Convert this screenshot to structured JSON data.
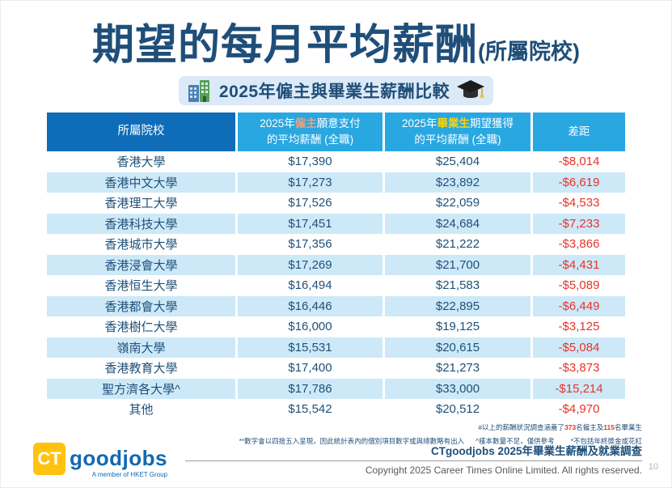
{
  "title": {
    "main": "期望的每月平均薪酬",
    "suffix": "(所屬院校)"
  },
  "subtitle": {
    "text": "2025年僱主與畢業生薪酬比較"
  },
  "table": {
    "header": {
      "institution": "所屬院校",
      "employer_prefix": "2025年",
      "employer_highlight": "僱主",
      "employer_rest": "願意支付",
      "employer_line2": "的平均薪酬 (全職)",
      "graduate_prefix": "2025年",
      "graduate_highlight": "畢業生",
      "graduate_rest": "期望獲得",
      "graduate_line2": "的平均薪酬 (全職)",
      "gap": "差距"
    },
    "rows": [
      {
        "institution": "香港大學",
        "employer": "$17,390",
        "graduate": "$25,404",
        "gap": "-$8,014"
      },
      {
        "institution": "香港中文大學",
        "employer": "$17,273",
        "graduate": "$23,892",
        "gap": "-$6,619"
      },
      {
        "institution": "香港理工大學",
        "employer": "$17,526",
        "graduate": "$22,059",
        "gap": "-$4,533"
      },
      {
        "institution": "香港科技大學",
        "employer": "$17,451",
        "graduate": "$24,684",
        "gap": "-$7,233"
      },
      {
        "institution": "香港城市大學",
        "employer": "$17,356",
        "graduate": "$21,222",
        "gap": "-$3,866"
      },
      {
        "institution": "香港浸會大學",
        "employer": "$17,269",
        "graduate": "$21,700",
        "gap": "-$4,431"
      },
      {
        "institution": "香港恒生大學",
        "employer": "$16,494",
        "graduate": "$21,583",
        "gap": "-$5,089"
      },
      {
        "institution": "香港都會大學",
        "employer": "$16,446",
        "graduate": "$22,895",
        "gap": "-$6,449"
      },
      {
        "institution": "香港樹仁大學",
        "employer": "$16,000",
        "graduate": "$19,125",
        "gap": "-$3,125"
      },
      {
        "institution": "嶺南大學",
        "employer": "$15,531",
        "graduate": "$20,615",
        "gap": "-$5,084"
      },
      {
        "institution": "香港教育大學",
        "employer": "$17,400",
        "graduate": "$21,273",
        "gap": "-$3,873"
      },
      {
        "institution": "聖方濟各大學^",
        "employer": "$17,786",
        "graduate": "$33,000",
        "gap": "-$15,214"
      },
      {
        "institution": "其他",
        "employer": "$15,542",
        "graduate": "$20,512",
        "gap": "-$4,970"
      }
    ]
  },
  "footnotes": {
    "line1_prefix": "#以上的薪酬狀況調查涵蓋了",
    "line1_num1": "373",
    "line1_mid": "名僱主及",
    "line1_num2": "115",
    "line1_suffix": "名畢業生",
    "line2_part1": "**數字會以四捨五入呈現，因此統計表內的個別項目數字或與總數略有出入",
    "line2_part2": "^樣本數量不足，僅供參考",
    "line2_part3": "*不包括年終獎金或花紅"
  },
  "source_line": "CTgoodjobs 2025年畢業生薪酬及就業調查",
  "footer": {
    "logo_ct": "CT",
    "logo_goodjobs": "goodjobs",
    "logo_tagline": "A member of HKET Group",
    "copyright": "Copyright 2025 Career Times Online Limited. All rights reserved.",
    "page_number": "10"
  },
  "colors": {
    "title_navy": "#1f4e79",
    "header_dark_blue": "#0e6cb8",
    "header_light_blue": "#29a7e1",
    "row_alt_blue": "#cde9f8",
    "gap_red": "#e8332a",
    "employer_highlight": "#f2a07b",
    "graduate_highlight": "#ffd400",
    "pill_bg": "#dceaf7",
    "logo_yellow": "#ffc20e",
    "logo_blue": "#1268b3"
  }
}
